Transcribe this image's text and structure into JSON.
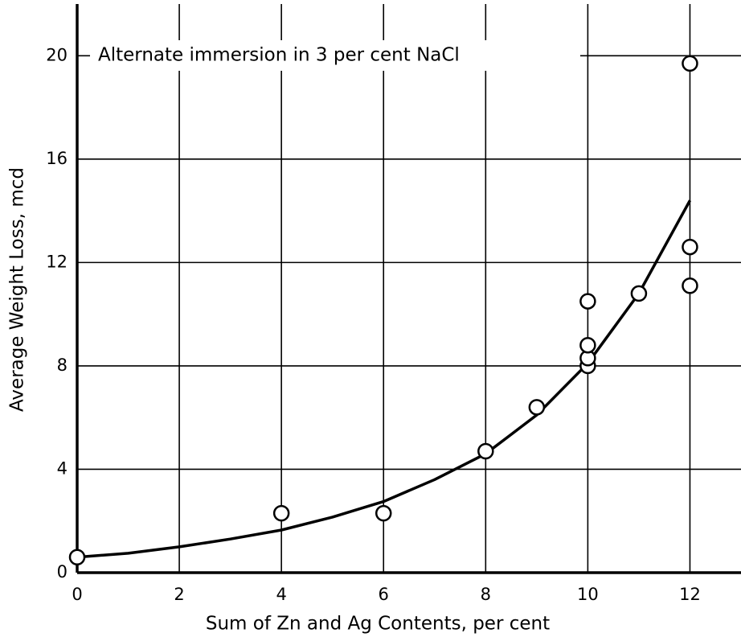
{
  "chart_data": {
    "type": "scatter",
    "annotation": "Alternate immersion in 3 per cent NaCl",
    "x_label": "Sum of Zn and Ag Contents, per cent",
    "y_label": "Average Weight Loss, mcd",
    "points": {
      "x": [
        0,
        4,
        6,
        8,
        9,
        10,
        10,
        10,
        10,
        11,
        12,
        12,
        12
      ],
      "y": [
        0.6,
        2.3,
        2.3,
        4.7,
        6.4,
        8.0,
        8.3,
        8.8,
        10.5,
        10.8,
        11.1,
        12.6,
        19.7
      ]
    },
    "curve": {
      "x": [
        0,
        1,
        2,
        3,
        4,
        5,
        6,
        7,
        8,
        9,
        10,
        11,
        12
      ],
      "y": [
        0.6,
        0.75,
        1.0,
        1.3,
        1.65,
        2.15,
        2.75,
        3.6,
        4.6,
        6.1,
        8.1,
        10.8,
        14.4
      ]
    },
    "color": "#000000",
    "xlim": [
      0,
      13
    ],
    "ylim": [
      0,
      22
    ],
    "xticks": [
      0,
      2,
      4,
      6,
      8,
      10,
      12
    ],
    "yticks": [
      0,
      4,
      8,
      12,
      16,
      20
    ],
    "grid": true
  }
}
